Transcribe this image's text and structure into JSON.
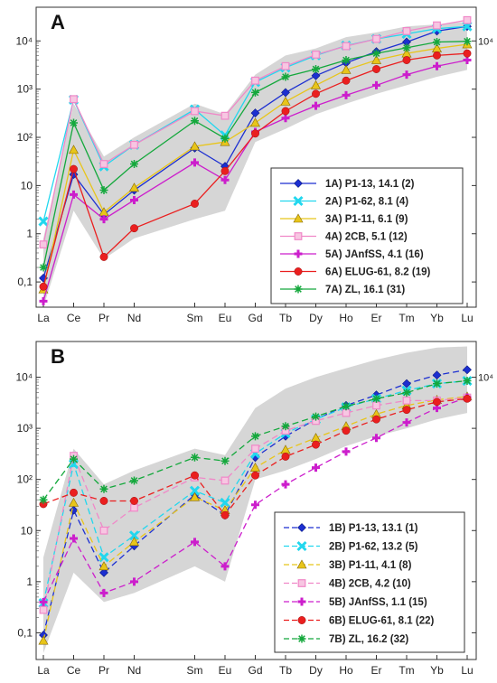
{
  "chart_data": [
    {
      "type": "line",
      "panel_label": "A",
      "categories": [
        "La",
        "Ce",
        "Pr",
        "Nd",
        "Sm",
        "Eu",
        "Gd",
        "Tb",
        "Dy",
        "Ho",
        "Er",
        "Tm",
        "Yb",
        "Lu"
      ],
      "category_positions": [
        1,
        2,
        3,
        4,
        6,
        7,
        8,
        9,
        10,
        11,
        12,
        13,
        14,
        15
      ],
      "yscale": "log",
      "ylim": [
        0.03,
        50000
      ],
      "yticks": [
        0.1,
        1,
        10,
        100,
        1000,
        10000
      ],
      "yticklabels": [
        "0,1",
        "1",
        "10",
        "10²",
        "10³",
        "10⁴"
      ],
      "right_label": "10⁴",
      "right_label_value": 10000,
      "xlabel": "",
      "ylabel": "",
      "line_style": "solid",
      "legend_position": "lower-right",
      "envelope": {
        "categories": [
          "La",
          "Ce",
          "Pr",
          "Nd",
          "Sm",
          "Eu",
          "Gd",
          "Tb",
          "Dy",
          "Ho",
          "Er",
          "Tm",
          "Yb",
          "Lu"
        ],
        "upper": [
          0.8,
          500,
          40,
          100,
          500,
          300,
          2000,
          5000,
          7000,
          12000,
          15000,
          20000,
          22000,
          25000
        ],
        "lower": [
          0.03,
          3,
          0.3,
          0.8,
          2,
          3,
          80,
          150,
          300,
          500,
          800,
          1200,
          1800,
          2500
        ]
      },
      "series": [
        {
          "name": "1A) P1-13, 14.1 (2)",
          "color": "#1c2fd1",
          "marker": "diamond",
          "values": [
            0.12,
            17,
            2.5,
            8,
            60,
            25,
            320,
            850,
            1900,
            3500,
            6000,
            9500,
            16000,
            20000
          ]
        },
        {
          "name": "2A) P1-62, 8.1 (4)",
          "color": "#22d7ee",
          "marker": "x",
          "values": [
            1.8,
            600,
            25,
            70,
            380,
            110,
            1400,
            2800,
            5000,
            8000,
            11000,
            14000,
            18000,
            20000
          ]
        },
        {
          "name": "3A) P1-11, 6.1 (9)",
          "color": "#e8c51a",
          "marker": "triangle",
          "values": [
            0.07,
            55,
            2.8,
            9,
            65,
            80,
            200,
            550,
            1200,
            2500,
            4000,
            5500,
            7000,
            8500
          ]
        },
        {
          "name": "4A) 2CB, 5.1 (12)",
          "color": "#f088c8",
          "marker": "square",
          "values": [
            0.6,
            620,
            28,
            70,
            350,
            280,
            1500,
            3000,
            5200,
            7800,
            11000,
            16000,
            21000,
            27000
          ]
        },
        {
          "name": "5A) JAnfSS, 4.1 (16)",
          "color": "#cc1ecc",
          "marker": "plus",
          "values": [
            0.04,
            6.5,
            2,
            5,
            30,
            13,
            130,
            250,
            450,
            750,
            1200,
            2000,
            3000,
            4000
          ]
        },
        {
          "name": "6A) ELUG-61, 8.2 (19)",
          "color": "#ea1f1f",
          "marker": "circle",
          "values": [
            0.08,
            22,
            0.33,
            1.3,
            4.2,
            20,
            120,
            350,
            800,
            1500,
            2600,
            4000,
            5000,
            5500
          ]
        },
        {
          "name": "7A) ZL, 16.1 (31)",
          "color": "#14a83c",
          "marker": "asterisk",
          "values": [
            0.2,
            200,
            8,
            28,
            220,
            95,
            850,
            1800,
            2600,
            4000,
            5500,
            7200,
            9500,
            9800
          ]
        }
      ]
    },
    {
      "type": "line",
      "panel_label": "B",
      "categories": [
        "La",
        "Ce",
        "Pr",
        "Nd",
        "Sm",
        "Eu",
        "Gd",
        "Tb",
        "Dy",
        "Ho",
        "Er",
        "Tm",
        "Yb",
        "Lu"
      ],
      "category_positions": [
        1,
        2,
        3,
        4,
        6,
        7,
        8,
        9,
        10,
        11,
        12,
        13,
        14,
        15
      ],
      "yscale": "log",
      "ylim": [
        0.03,
        50000
      ],
      "yticks": [
        0.1,
        1,
        10,
        100,
        1000,
        10000
      ],
      "yticklabels": [
        "0,1",
        "1",
        "10",
        "10²",
        "10³",
        "10⁴"
      ],
      "right_label": "10⁴",
      "right_label_value": 10000,
      "xlabel": "",
      "ylabel": "",
      "line_style": "dashed",
      "legend_position": "lower-right",
      "envelope": {
        "categories": [
          "La",
          "Ce",
          "Pr",
          "Nd",
          "Sm",
          "Eu",
          "Gd",
          "Tb",
          "Dy",
          "Ho",
          "Er",
          "Tm",
          "Yb",
          "Lu"
        ],
        "upper": [
          3,
          400,
          80,
          150,
          400,
          300,
          2500,
          6000,
          10000,
          15000,
          22000,
          30000,
          38000,
          40000
        ],
        "lower": [
          0.04,
          1.5,
          0.4,
          0.6,
          2,
          1,
          100,
          150,
          250,
          450,
          700,
          1000,
          1500,
          2000
        ]
      },
      "series": [
        {
          "name": "1B) P1-13, 13.1 (1)",
          "color": "#1c2fd1",
          "marker": "diamond",
          "values": [
            0.09,
            25,
            1.5,
            5,
            50,
            20,
            270,
            700,
            1500,
            2800,
            4500,
            7500,
            11000,
            14000
          ]
        },
        {
          "name": "2B) P1-62, 13.2 (5)",
          "color": "#22d7ee",
          "marker": "x",
          "values": [
            0.38,
            200,
            3,
            8,
            60,
            35,
            320,
            800,
            1500,
            2600,
            3800,
            5500,
            7500,
            8500
          ]
        },
        {
          "name": "3B) P1-11, 4.1 (8)",
          "color": "#e8c51a",
          "marker": "triangle",
          "values": [
            0.07,
            35,
            2,
            6,
            45,
            25,
            170,
            380,
            650,
            1100,
            1900,
            2800,
            3600,
            4200
          ]
        },
        {
          "name": "4B) 2CB, 4.2 (10)",
          "color": "#f088c8",
          "marker": "square",
          "values": [
            0.28,
            290,
            10,
            28,
            110,
            95,
            400,
            900,
            1400,
            2000,
            2800,
            3500,
            3500,
            4000
          ]
        },
        {
          "name": "5B) JAnfSS, 1.1 (15)",
          "color": "#cc1ecc",
          "marker": "plus",
          "values": [
            0.4,
            7,
            0.6,
            1,
            6,
            2,
            32,
            80,
            170,
            350,
            650,
            1300,
            2500,
            4000
          ]
        },
        {
          "name": "6B) ELUG-61, 8.1 (22)",
          "color": "#ea1f1f",
          "marker": "circle",
          "values": [
            33,
            55,
            38,
            38,
            120,
            20,
            120,
            280,
            480,
            900,
            1500,
            2300,
            3300,
            3800
          ]
        },
        {
          "name": "7B) ZL, 16.2 (32)",
          "color": "#14a83c",
          "marker": "asterisk",
          "values": [
            40,
            250,
            65,
            95,
            270,
            230,
            700,
            1100,
            1700,
            2700,
            3800,
            5000,
            7500,
            8500
          ]
        }
      ]
    }
  ]
}
